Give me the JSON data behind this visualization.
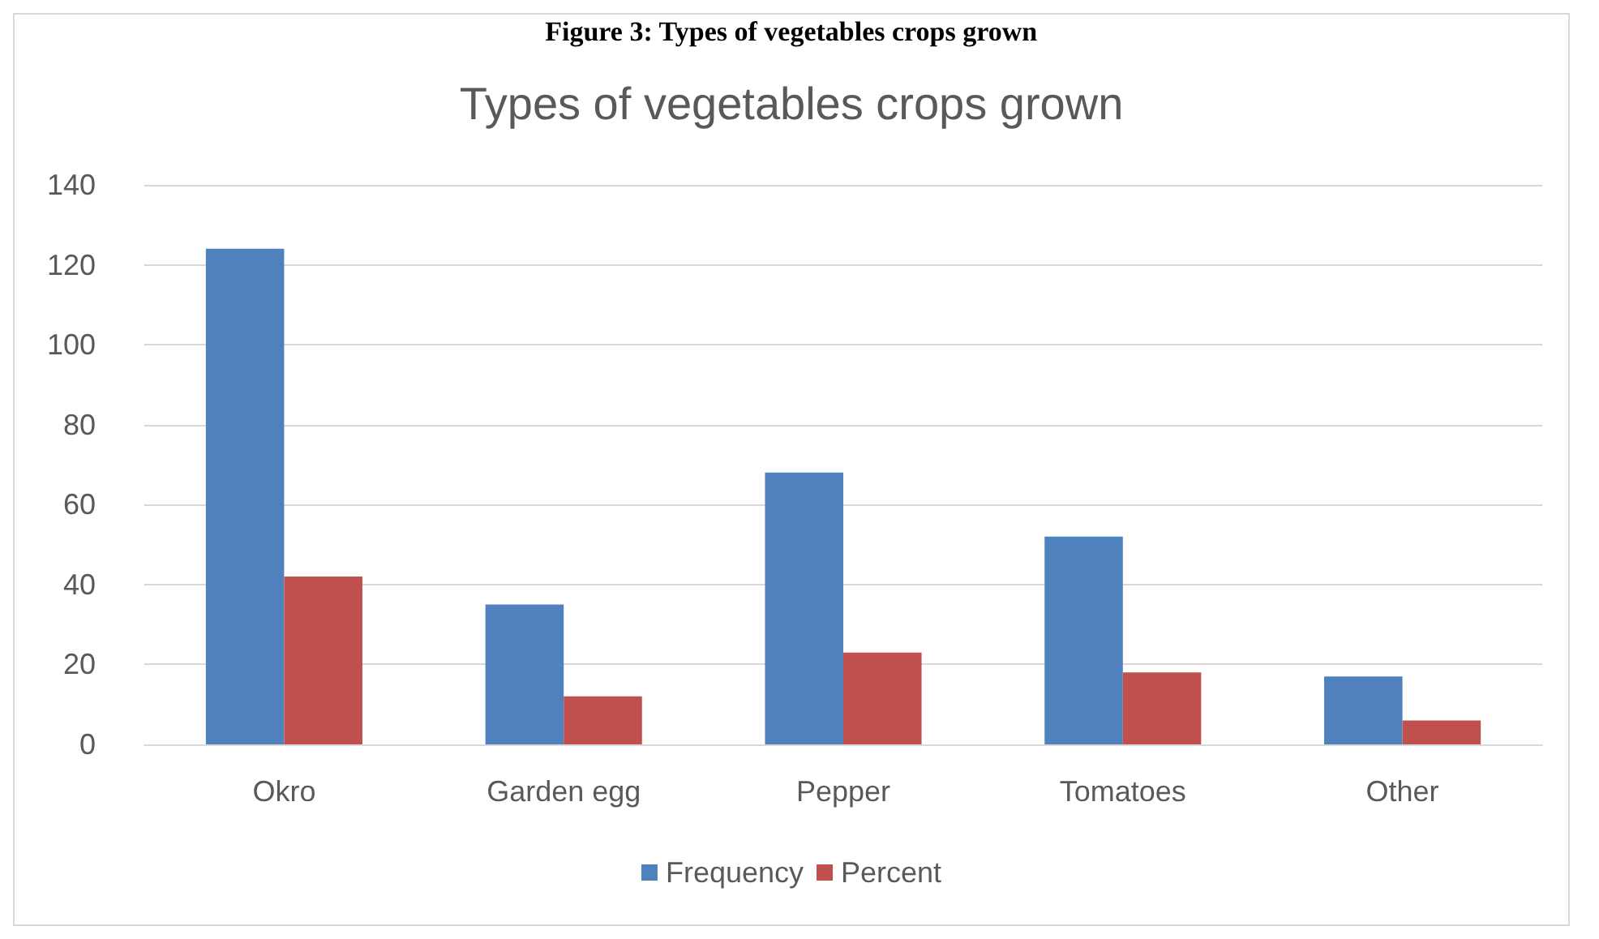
{
  "chart_data": {
    "type": "bar",
    "title": "Types of vegetables crops grown",
    "annotations": [
      "Figure 3: Types of vegetables crops grown"
    ],
    "categories": [
      "Okro",
      "Garden egg",
      "Pepper",
      "Tomatoes",
      "Other"
    ],
    "series": [
      {
        "name": "Frequency",
        "color": "#4f81bd",
        "values": [
          124,
          35,
          68,
          52,
          17
        ]
      },
      {
        "name": "Percent",
        "color": "#c0504d",
        "values": [
          42,
          12,
          23,
          18,
          6
        ]
      }
    ],
    "ylim": [
      0,
      140
    ],
    "yticks": [
      0,
      20,
      40,
      60,
      80,
      100,
      120,
      140
    ],
    "grid": "y",
    "legend": "bottom"
  }
}
